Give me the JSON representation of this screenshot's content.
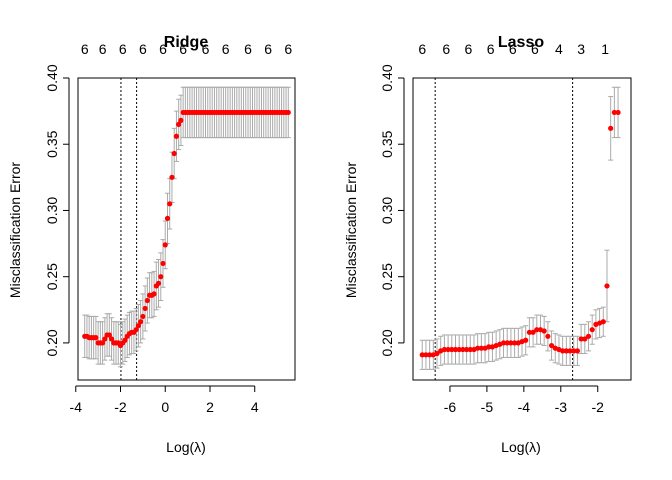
{
  "chart_data": [
    {
      "type": "scatter",
      "title": "Ridge",
      "xlabel": "Log(λ)",
      "ylabel": "Misclassification Error",
      "xlim": [
        -3.9,
        5.8
      ],
      "ylim": [
        0.172,
        0.4
      ],
      "x_ticks": [
        -4,
        -2,
        0,
        2,
        4
      ],
      "x_tick_labels": [
        "-4",
        "-2",
        "0",
        "2",
        "4"
      ],
      "y_ticks": [
        0.2,
        0.25,
        0.3,
        0.35,
        0.4
      ],
      "y_tick_labels": [
        "0.20",
        "0.25",
        "0.30",
        "0.35",
        "0.40"
      ],
      "top_axis": {
        "ticks": [
          -3.6,
          -2.8,
          -1.9,
          -1.0,
          -0.1,
          0.8,
          1.8,
          2.7,
          3.7,
          4.6,
          5.5
        ],
        "labels": [
          "6",
          "6",
          "6",
          "6",
          "6",
          "6",
          "6",
          "6",
          "6",
          "6",
          "6"
        ]
      },
      "vlines": [
        -1.98,
        -1.28
      ],
      "point_color": "#ff0000",
      "errorbar_color": "#aaaaaa",
      "grid": false,
      "legend": "none",
      "series": [
        {
          "x": [
            -3.6,
            -3.5,
            -3.4,
            -3.3,
            -3.2,
            -3.1,
            -3.0,
            -2.9,
            -2.8,
            -2.7,
            -2.6,
            -2.5,
            -2.4,
            -2.3,
            -2.2,
            -2.1,
            -2.0,
            -1.9,
            -1.8,
            -1.7,
            -1.6,
            -1.5,
            -1.4,
            -1.3,
            -1.2,
            -1.1,
            -1.0,
            -0.9,
            -0.8,
            -0.7,
            -0.6,
            -0.5,
            -0.4,
            -0.3,
            -0.2,
            -0.1,
            0.0,
            0.1,
            0.2,
            0.3,
            0.4,
            0.5,
            0.6,
            0.7,
            0.8,
            0.9,
            1.0,
            1.1,
            1.2,
            1.3,
            1.4,
            1.5,
            1.6,
            1.7,
            1.8,
            1.9,
            2.0,
            2.1,
            2.2,
            2.3,
            2.4,
            2.5,
            2.6,
            2.7,
            2.8,
            2.9,
            3.0,
            3.1,
            3.2,
            3.3,
            3.4,
            3.5,
            3.6,
            3.7,
            3.8,
            3.9,
            4.0,
            4.1,
            4.2,
            4.3,
            4.4,
            4.5,
            4.6,
            4.7,
            4.8,
            4.9,
            5.0,
            5.1,
            5.2,
            5.3,
            5.4,
            5.5
          ],
          "y": [
            0.205,
            0.205,
            0.204,
            0.204,
            0.204,
            0.204,
            0.2,
            0.2,
            0.2,
            0.203,
            0.206,
            0.206,
            0.203,
            0.2,
            0.2,
            0.2,
            0.198,
            0.2,
            0.202,
            0.205,
            0.207,
            0.208,
            0.208,
            0.21,
            0.213,
            0.216,
            0.22,
            0.226,
            0.232,
            0.236,
            0.236,
            0.237,
            0.243,
            0.245,
            0.25,
            0.26,
            0.274,
            0.294,
            0.305,
            0.325,
            0.343,
            0.356,
            0.365,
            0.368,
            0.374,
            0.374,
            0.374,
            0.374,
            0.374,
            0.374,
            0.374,
            0.374,
            0.374,
            0.374,
            0.374,
            0.374,
            0.374,
            0.374,
            0.374,
            0.374,
            0.374,
            0.374,
            0.374,
            0.374,
            0.374,
            0.374,
            0.374,
            0.374,
            0.374,
            0.374,
            0.374,
            0.374,
            0.374,
            0.374,
            0.374,
            0.374,
            0.374,
            0.374,
            0.374,
            0.374,
            0.374,
            0.374,
            0.374,
            0.374,
            0.374,
            0.374,
            0.374,
            0.374,
            0.374,
            0.374,
            0.374,
            0.374
          ],
          "err": [
            0.016,
            0.016,
            0.016,
            0.016,
            0.016,
            0.016,
            0.016,
            0.016,
            0.016,
            0.016,
            0.016,
            0.016,
            0.016,
            0.016,
            0.016,
            0.016,
            0.016,
            0.016,
            0.016,
            0.016,
            0.016,
            0.016,
            0.016,
            0.016,
            0.016,
            0.016,
            0.017,
            0.017,
            0.017,
            0.017,
            0.017,
            0.017,
            0.018,
            0.018,
            0.018,
            0.018,
            0.018,
            0.019,
            0.019,
            0.019,
            0.019,
            0.019,
            0.019,
            0.019,
            0.019,
            0.019,
            0.019,
            0.019,
            0.019,
            0.019,
            0.019,
            0.019,
            0.019,
            0.019,
            0.019,
            0.019,
            0.019,
            0.019,
            0.019,
            0.019,
            0.019,
            0.019,
            0.019,
            0.019,
            0.019,
            0.019,
            0.019,
            0.019,
            0.019,
            0.019,
            0.019,
            0.019,
            0.019,
            0.019,
            0.019,
            0.019,
            0.019,
            0.019,
            0.019,
            0.019,
            0.019,
            0.019,
            0.019,
            0.019,
            0.019,
            0.019,
            0.019,
            0.019,
            0.019,
            0.019,
            0.019,
            0.019
          ]
        }
      ]
    },
    {
      "type": "scatter",
      "title": "Lasso",
      "xlabel": "Log(λ)",
      "ylabel": "Misclassification Error",
      "xlim": [
        -7.0,
        -1.1
      ],
      "ylim": [
        0.172,
        0.4
      ],
      "x_ticks": [
        -6,
        -5,
        -4,
        -3,
        -2
      ],
      "x_tick_labels": [
        "-6",
        "-5",
        "-4",
        "-3",
        "-2"
      ],
      "y_ticks": [
        0.2,
        0.25,
        0.3,
        0.35,
        0.4
      ],
      "y_tick_labels": [
        "0.20",
        "0.25",
        "0.30",
        "0.35",
        "0.40"
      ],
      "top_axis": {
        "ticks": [
          -6.75,
          -6.1,
          -5.5,
          -4.9,
          -4.3,
          -3.7,
          -3.05,
          -2.45,
          -1.8
        ],
        "labels": [
          "6",
          "6",
          "6",
          "6",
          "6",
          "6",
          "4",
          "3",
          "1"
        ]
      },
      "vlines": [
        -6.4,
        -2.68
      ],
      "point_color": "#ff0000",
      "errorbar_color": "#aaaaaa",
      "grid": false,
      "legend": "none",
      "series": [
        {
          "x": [
            -6.75,
            -6.65,
            -6.55,
            -6.45,
            -6.35,
            -6.25,
            -6.15,
            -6.05,
            -5.95,
            -5.85,
            -5.75,
            -5.65,
            -5.55,
            -5.45,
            -5.35,
            -5.25,
            -5.15,
            -5.05,
            -4.95,
            -4.85,
            -4.75,
            -4.65,
            -4.55,
            -4.45,
            -4.35,
            -4.25,
            -4.15,
            -4.05,
            -3.95,
            -3.85,
            -3.75,
            -3.65,
            -3.55,
            -3.45,
            -3.35,
            -3.25,
            -3.15,
            -3.05,
            -2.95,
            -2.85,
            -2.75,
            -2.65,
            -2.55,
            -2.45,
            -2.35,
            -2.25,
            -2.15,
            -2.05,
            -1.95,
            -1.85,
            -1.75,
            -1.65,
            -1.55,
            -1.45
          ],
          "y": [
            0.191,
            0.191,
            0.191,
            0.191,
            0.192,
            0.194,
            0.195,
            0.195,
            0.195,
            0.195,
            0.195,
            0.195,
            0.195,
            0.195,
            0.195,
            0.196,
            0.196,
            0.196,
            0.197,
            0.197,
            0.198,
            0.199,
            0.2,
            0.2,
            0.2,
            0.2,
            0.2,
            0.201,
            0.202,
            0.208,
            0.208,
            0.21,
            0.21,
            0.209,
            0.205,
            0.198,
            0.196,
            0.195,
            0.194,
            0.194,
            0.194,
            0.194,
            0.194,
            0.203,
            0.203,
            0.205,
            0.21,
            0.214,
            0.215,
            0.216,
            0.243,
            0.362,
            0.374,
            0.374
          ],
          "err": [
            0.011,
            0.011,
            0.011,
            0.011,
            0.011,
            0.011,
            0.011,
            0.011,
            0.011,
            0.011,
            0.011,
            0.011,
            0.011,
            0.011,
            0.011,
            0.011,
            0.011,
            0.011,
            0.011,
            0.011,
            0.011,
            0.011,
            0.011,
            0.011,
            0.011,
            0.011,
            0.011,
            0.011,
            0.011,
            0.011,
            0.011,
            0.011,
            0.011,
            0.011,
            0.011,
            0.011,
            0.011,
            0.011,
            0.011,
            0.011,
            0.011,
            0.011,
            0.011,
            0.011,
            0.011,
            0.011,
            0.011,
            0.011,
            0.011,
            0.011,
            0.027,
            0.024,
            0.019,
            0.019
          ]
        }
      ]
    }
  ]
}
